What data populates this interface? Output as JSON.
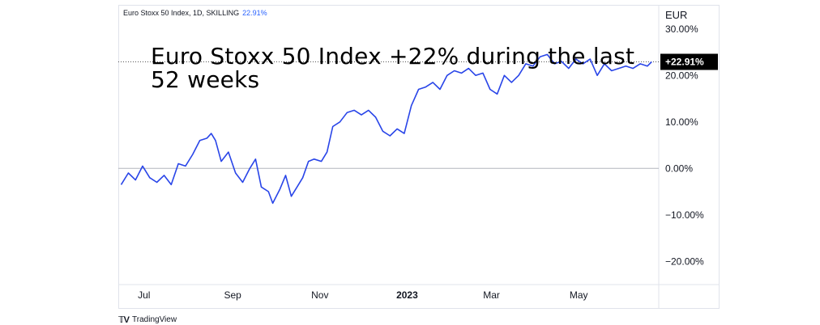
{
  "legend": {
    "title": "Euro Stoxx 50 Index, 1D, SKILLING",
    "value": "22.91%"
  },
  "currency": "EUR",
  "headline": "Euro Stoxx 50 Index +22% during the last 52 weeks",
  "footer": {
    "brand": "TradingView"
  },
  "colors": {
    "line": "#2945e8",
    "zero_line": "#b2b5be",
    "last_label_bg": "#000000"
  },
  "chart_data": {
    "type": "line",
    "ylim": [
      -25,
      35
    ],
    "yticks": [
      30,
      20,
      10,
      0,
      -10,
      -20
    ],
    "ytick_labels": [
      "30.00%",
      "20.00%",
      "10.00%",
      "0.00%",
      "−10.00%",
      "−20.00%"
    ],
    "xticks": [
      {
        "label": "Jul",
        "at": "2022-07-01"
      },
      {
        "label": "Sep",
        "at": "2022-09-01"
      },
      {
        "label": "Nov",
        "at": "2022-11-01"
      },
      {
        "label": "2023",
        "at": "2023-01-01",
        "bold": true
      },
      {
        "label": "Mar",
        "at": "2023-03-01"
      },
      {
        "label": "May",
        "at": "2023-05-01"
      }
    ],
    "xlim": [
      "2022-06-13",
      "2023-06-26"
    ],
    "last_value_label": "+22.91%",
    "last_value": 22.91,
    "series": [
      {
        "x": [
          "2022-06-15",
          "2022-06-20",
          "2022-06-25",
          "2022-06-30",
          "2022-07-05",
          "2022-07-10",
          "2022-07-15",
          "2022-07-20",
          "2022-07-25",
          "2022-07-30",
          "2022-08-04",
          "2022-08-09",
          "2022-08-14",
          "2022-08-17",
          "2022-08-20",
          "2022-08-24",
          "2022-08-29",
          "2022-09-03",
          "2022-09-08",
          "2022-09-13",
          "2022-09-17",
          "2022-09-21",
          "2022-09-26",
          "2022-09-29",
          "2022-10-04",
          "2022-10-08",
          "2022-10-12",
          "2022-10-16",
          "2022-10-20",
          "2022-10-24",
          "2022-10-28",
          "2022-11-02",
          "2022-11-06",
          "2022-11-10",
          "2022-11-15",
          "2022-11-20",
          "2022-11-25",
          "2022-11-30",
          "2022-12-05",
          "2022-12-10",
          "2022-12-15",
          "2022-12-20",
          "2022-12-25",
          "2022-12-30",
          "2023-01-04",
          "2023-01-09",
          "2023-01-14",
          "2023-01-19",
          "2023-01-24",
          "2023-01-29",
          "2023-02-03",
          "2023-02-08",
          "2023-02-13",
          "2023-02-18",
          "2023-02-23",
          "2023-02-28",
          "2023-03-05",
          "2023-03-10",
          "2023-03-15",
          "2023-03-20",
          "2023-03-25",
          "2023-03-30",
          "2023-04-04",
          "2023-04-09",
          "2023-04-14",
          "2023-04-19",
          "2023-04-24",
          "2023-04-29",
          "2023-05-04",
          "2023-05-09",
          "2023-05-14",
          "2023-05-19",
          "2023-05-24",
          "2023-05-29",
          "2023-06-03",
          "2023-06-08",
          "2023-06-13",
          "2023-06-18",
          "2023-06-21"
        ],
        "values": [
          -3.5,
          -1.0,
          -2.5,
          0.5,
          -2.0,
          -3.0,
          -1.5,
          -3.5,
          1.0,
          0.5,
          3.0,
          6.0,
          6.5,
          7.5,
          6.0,
          1.5,
          3.5,
          -1.0,
          -3.0,
          0.0,
          2.0,
          -4.0,
          -5.0,
          -7.5,
          -4.5,
          -1.5,
          -6.0,
          -4.0,
          -2.0,
          1.5,
          2.0,
          1.5,
          3.5,
          9.0,
          10.0,
          12.0,
          12.5,
          11.5,
          12.5,
          11.0,
          8.0,
          7.0,
          8.5,
          7.5,
          13.5,
          17.0,
          17.5,
          18.5,
          17.0,
          20.0,
          21.0,
          20.5,
          21.5,
          20.0,
          20.5,
          17.0,
          16.0,
          20.0,
          18.5,
          20.0,
          22.5,
          22.0,
          24.0,
          24.5,
          22.5,
          23.0,
          21.5,
          23.5,
          22.5,
          23.5,
          20.0,
          22.5,
          21.0,
          21.5,
          22.0,
          21.5,
          22.5,
          22.0,
          22.91
        ]
      }
    ]
  }
}
